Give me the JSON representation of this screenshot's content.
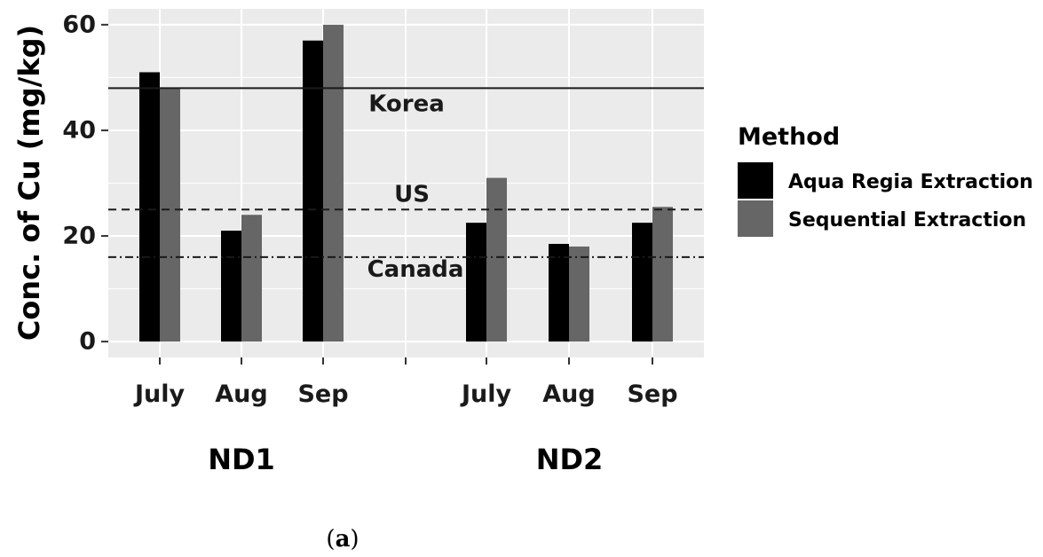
{
  "chart_data": {
    "type": "bar",
    "ylabel": "Conc. of Cu (mg/kg)",
    "xlabel": "",
    "ylim": [
      -3,
      63
    ],
    "yticks": [
      0,
      20,
      40,
      60
    ],
    "grid": true,
    "groups": [
      {
        "name": "ND1",
        "categories": [
          "July",
          "Aug",
          "Sep"
        ]
      },
      {
        "name": "ND2",
        "categories": [
          "July",
          "Aug",
          "Sep"
        ]
      }
    ],
    "series": [
      {
        "name": "Aqua Regia Extraction",
        "color": "#000000",
        "values": [
          51,
          21,
          57,
          22.5,
          18.5,
          22.5
        ]
      },
      {
        "name": "Sequential Extraction",
        "color": "#666666",
        "values": [
          48,
          24,
          60,
          31,
          18,
          25.5
        ]
      }
    ],
    "reference_lines": [
      {
        "label": "Korea",
        "value": 48,
        "style": "solid"
      },
      {
        "label": "US",
        "value": 25,
        "style": "dashed"
      },
      {
        "label": "Canada",
        "value": 16,
        "style": "dashdot"
      }
    ],
    "legend": {
      "title": "Method",
      "placement": "right"
    }
  },
  "caption": {
    "open": "(",
    "letter": "a",
    "close": ")"
  }
}
